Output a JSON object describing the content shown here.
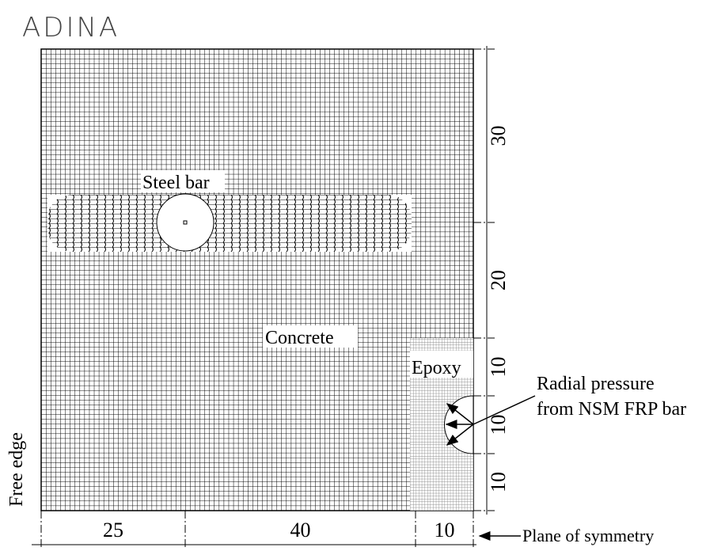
{
  "logo": "ADINA",
  "labels": {
    "steel_bar": "Steel bar",
    "concrete": "Concrete",
    "epoxy": "Epoxy",
    "radial_pressure": [
      "Radial pressure",
      "from NSM FRP bar"
    ],
    "free_edge": "Free edge",
    "plane_of_symmetry": "Plane of symmetry"
  },
  "dimensions": {
    "vertical": [
      "30",
      "20",
      "10",
      "10",
      "10"
    ],
    "horizontal": [
      "25",
      "40",
      "10"
    ]
  }
}
